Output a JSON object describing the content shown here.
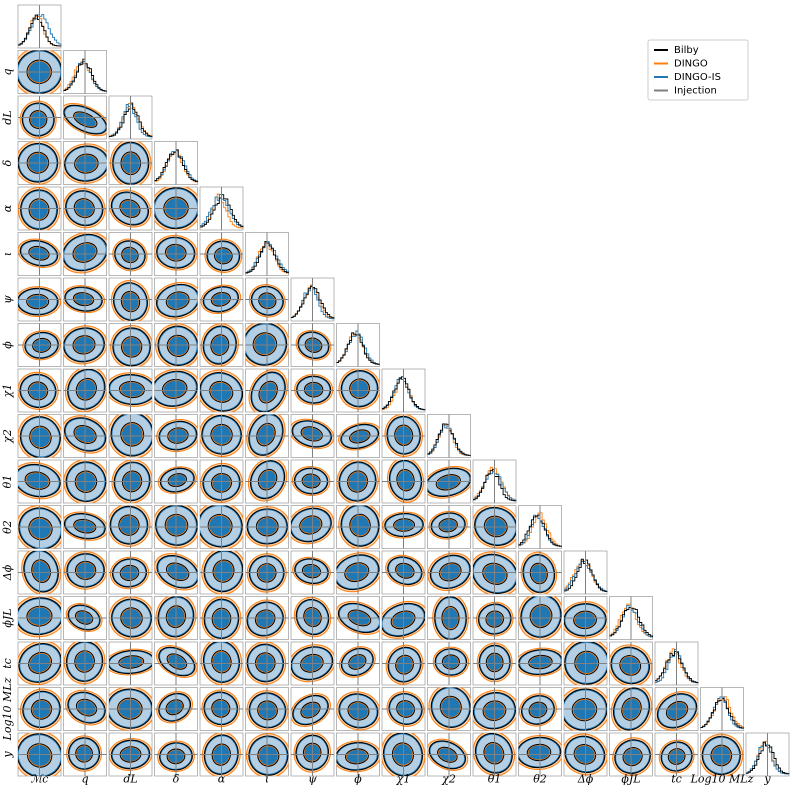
{
  "chart_data": {
    "type": "corner",
    "parameters": [
      "ℳc",
      "q",
      "dL",
      "δ",
      "α",
      "ι",
      "ψ",
      "ϕ",
      "χ1",
      "χ2",
      "θ1",
      "θ2",
      "Δϕ",
      "ϕJL",
      "tc",
      "Log10 MLz",
      "y"
    ],
    "series": [
      {
        "name": "Bilby",
        "color": "#000000"
      },
      {
        "name": "DINGO",
        "color": "#ff7f0e"
      },
      {
        "name": "DINGO-IS",
        "color": "#1f77b4"
      },
      {
        "name": "Injection",
        "color": "#808080"
      }
    ],
    "legend": "upper right"
  }
}
